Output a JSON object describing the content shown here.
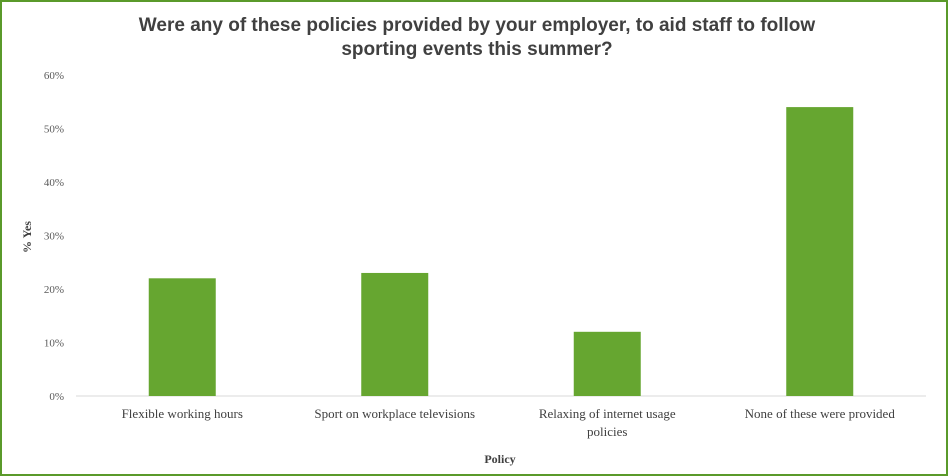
{
  "chart_data": {
    "type": "bar",
    "title_line1": "Were any of these policies provided by your employer, to aid staff to follow",
    "title_line2": "sporting events this summer?",
    "xlabel": "Policy",
    "ylabel": "% Yes",
    "categories": [
      [
        "Flexible working hours"
      ],
      [
        "Sport on workplace televisions"
      ],
      [
        "Relaxing of internet usage",
        "policies"
      ],
      [
        "None of these were provided"
      ]
    ],
    "values": [
      22,
      23,
      12,
      54
    ],
    "ylim": [
      0,
      60
    ],
    "yticks": [
      "0%",
      "10%",
      "20%",
      "30%",
      "40%",
      "50%",
      "60%"
    ],
    "grid": false,
    "colors": {
      "bar": "#66a630",
      "frame": "#5a9a2a",
      "axis": "#d9d9d9",
      "text": "#404040"
    }
  }
}
